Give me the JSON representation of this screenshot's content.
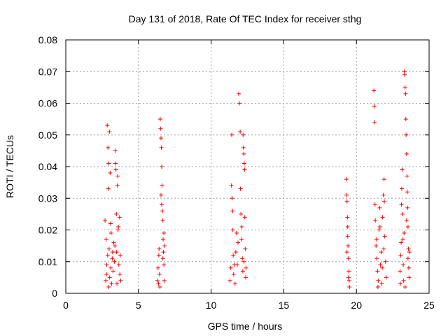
{
  "chart_data": {
    "type": "scatter",
    "title": "Day 131 of 2018, Rate Of TEC Index for receiver sthg",
    "xlabel": "GPS time / hours",
    "ylabel": "ROTI / TECUs",
    "xlim": [
      0,
      25
    ],
    "ylim": [
      0,
      0.08
    ],
    "xticks": [
      0,
      5,
      10,
      15,
      20,
      25
    ],
    "xtick_labels": [
      "0",
      "5",
      "10",
      "15",
      "20",
      "25"
    ],
    "yticks": [
      0,
      0.01,
      0.02,
      0.03,
      0.04,
      0.05,
      0.06,
      0.07,
      0.08
    ],
    "ytick_labels": [
      "0",
      "0.01",
      "0.02",
      "0.03",
      "0.04",
      "0.05",
      "0.06",
      "0.07",
      "0.08"
    ],
    "grid": true,
    "marker": "+",
    "color": "#ff0000",
    "series": [
      {
        "name": "ROTI",
        "points": [
          [
            2.7,
            0.023
          ],
          [
            2.75,
            0.004
          ],
          [
            2.8,
            0.006
          ],
          [
            2.82,
            0.009
          ],
          [
            2.85,
            0.053
          ],
          [
            2.88,
            0.012
          ],
          [
            2.9,
            0.046
          ],
          [
            2.92,
            0.033
          ],
          [
            2.95,
            0.041
          ],
          [
            2.98,
            0.014
          ],
          [
            3.0,
            0.051
          ],
          [
            3.02,
            0.005
          ],
          [
            3.05,
            0.038
          ],
          [
            3.08,
            0.022
          ],
          [
            3.1,
            0.008
          ],
          [
            3.15,
            0.003
          ],
          [
            3.2,
            0.011
          ],
          [
            3.25,
            0.007
          ],
          [
            3.3,
            0.016
          ],
          [
            3.35,
            0.01
          ],
          [
            3.4,
            0.045
          ],
          [
            3.42,
            0.041
          ],
          [
            3.45,
            0.039
          ],
          [
            3.48,
            0.025
          ],
          [
            3.5,
            0.013
          ],
          [
            3.55,
            0.034
          ],
          [
            3.58,
            0.037
          ],
          [
            3.6,
            0.02
          ],
          [
            3.65,
            0.009
          ],
          [
            3.7,
            0.024
          ],
          [
            3.72,
            0.006
          ],
          [
            3.75,
            0.012
          ],
          [
            3.78,
            0.004
          ],
          [
            2.78,
            0.017
          ],
          [
            3.12,
            0.019
          ],
          [
            3.38,
            0.015
          ],
          [
            3.62,
            0.021
          ],
          [
            2.95,
            0.002
          ],
          [
            3.22,
            0.013
          ],
          [
            3.52,
            0.003
          ],
          [
            6.3,
            0.004
          ],
          [
            6.35,
            0.008
          ],
          [
            6.4,
            0.012
          ],
          [
            6.45,
            0.006
          ],
          [
            6.5,
            0.055
          ],
          [
            6.52,
            0.052
          ],
          [
            6.55,
            0.049
          ],
          [
            6.58,
            0.046
          ],
          [
            6.6,
            0.04
          ],
          [
            6.62,
            0.034
          ],
          [
            6.65,
            0.026
          ],
          [
            6.68,
            0.023
          ],
          [
            6.7,
            0.017
          ],
          [
            6.72,
            0.013
          ],
          [
            6.75,
            0.009
          ],
          [
            6.78,
            0.004
          ],
          [
            6.8,
            0.015
          ],
          [
            6.55,
            0.031
          ],
          [
            6.6,
            0.028
          ],
          [
            6.48,
            0.002
          ],
          [
            6.68,
            0.011
          ],
          [
            6.42,
            0.014
          ],
          [
            6.38,
            0.003
          ],
          [
            6.75,
            0.019
          ],
          [
            11.3,
            0.004
          ],
          [
            11.35,
            0.008
          ],
          [
            11.4,
            0.034
          ],
          [
            11.42,
            0.05
          ],
          [
            11.45,
            0.03
          ],
          [
            11.48,
            0.026
          ],
          [
            11.5,
            0.02
          ],
          [
            11.52,
            0.012
          ],
          [
            11.55,
            0.006
          ],
          [
            11.6,
            0.009
          ],
          [
            11.7,
            0.013
          ],
          [
            11.8,
            0.009
          ],
          [
            11.9,
            0.063
          ],
          [
            11.95,
            0.06
          ],
          [
            12.0,
            0.051
          ],
          [
            12.02,
            0.033
          ],
          [
            12.05,
            0.025
          ],
          [
            12.1,
            0.017
          ],
          [
            12.15,
            0.011
          ],
          [
            12.2,
            0.05
          ],
          [
            12.22,
            0.046
          ],
          [
            12.25,
            0.044
          ],
          [
            12.28,
            0.041
          ],
          [
            12.3,
            0.039
          ],
          [
            12.32,
            0.024
          ],
          [
            12.35,
            0.014
          ],
          [
            12.38,
            0.005
          ],
          [
            12.4,
            0.008
          ],
          [
            11.65,
            0.003
          ],
          [
            11.85,
            0.016
          ],
          [
            12.12,
            0.021
          ],
          [
            12.18,
            0.007
          ],
          [
            11.75,
            0.019
          ],
          [
            12.26,
            0.01
          ],
          [
            19.3,
            0.036
          ],
          [
            19.32,
            0.031
          ],
          [
            19.35,
            0.029
          ],
          [
            19.38,
            0.024
          ],
          [
            19.4,
            0.021
          ],
          [
            19.42,
            0.015
          ],
          [
            19.45,
            0.011
          ],
          [
            19.48,
            0.007
          ],
          [
            19.5,
            0.004
          ],
          [
            19.52,
            0.002
          ],
          [
            19.4,
            0.018
          ],
          [
            19.45,
            0.005
          ],
          [
            19.35,
            0.013
          ],
          [
            21.2,
            0.064
          ],
          [
            21.22,
            0.059
          ],
          [
            21.25,
            0.054
          ],
          [
            21.28,
            0.028
          ],
          [
            21.3,
            0.023
          ],
          [
            21.35,
            0.015
          ],
          [
            21.4,
            0.011
          ],
          [
            21.45,
            0.007
          ],
          [
            21.5,
            0.004
          ],
          [
            21.55,
            0.02
          ],
          [
            21.6,
            0.027
          ],
          [
            21.65,
            0.009
          ],
          [
            21.7,
            0.013
          ],
          [
            21.75,
            0.003
          ],
          [
            21.8,
            0.024
          ],
          [
            21.85,
            0.031
          ],
          [
            21.9,
            0.036
          ],
          [
            21.92,
            0.029
          ],
          [
            21.95,
            0.018
          ],
          [
            22.0,
            0.01
          ],
          [
            22.05,
            0.005
          ],
          [
            21.38,
            0.017
          ],
          [
            21.62,
            0.021
          ],
          [
            21.88,
            0.014
          ],
          [
            21.48,
            0.002
          ],
          [
            21.78,
            0.008
          ],
          [
            23.0,
            0.007
          ],
          [
            23.05,
            0.012
          ],
          [
            23.1,
            0.028
          ],
          [
            23.12,
            0.033
          ],
          [
            23.15,
            0.039
          ],
          [
            23.18,
            0.025
          ],
          [
            23.2,
            0.017
          ],
          [
            23.22,
            0.009
          ],
          [
            23.25,
            0.004
          ],
          [
            23.3,
            0.07
          ],
          [
            23.32,
            0.069
          ],
          [
            23.35,
            0.065
          ],
          [
            23.38,
            0.063
          ],
          [
            23.4,
            0.055
          ],
          [
            23.42,
            0.05
          ],
          [
            23.45,
            0.044
          ],
          [
            23.48,
            0.037
          ],
          [
            23.5,
            0.032
          ],
          [
            23.52,
            0.027
          ],
          [
            23.55,
            0.021
          ],
          [
            23.58,
            0.014
          ],
          [
            23.6,
            0.008
          ],
          [
            23.62,
            0.005
          ],
          [
            23.28,
            0.019
          ],
          [
            23.08,
            0.016
          ],
          [
            23.45,
            0.023
          ],
          [
            23.55,
            0.011
          ],
          [
            23.02,
            0.003
          ],
          [
            23.35,
            0.002
          ],
          [
            23.65,
            0.013
          ]
        ]
      }
    ]
  }
}
